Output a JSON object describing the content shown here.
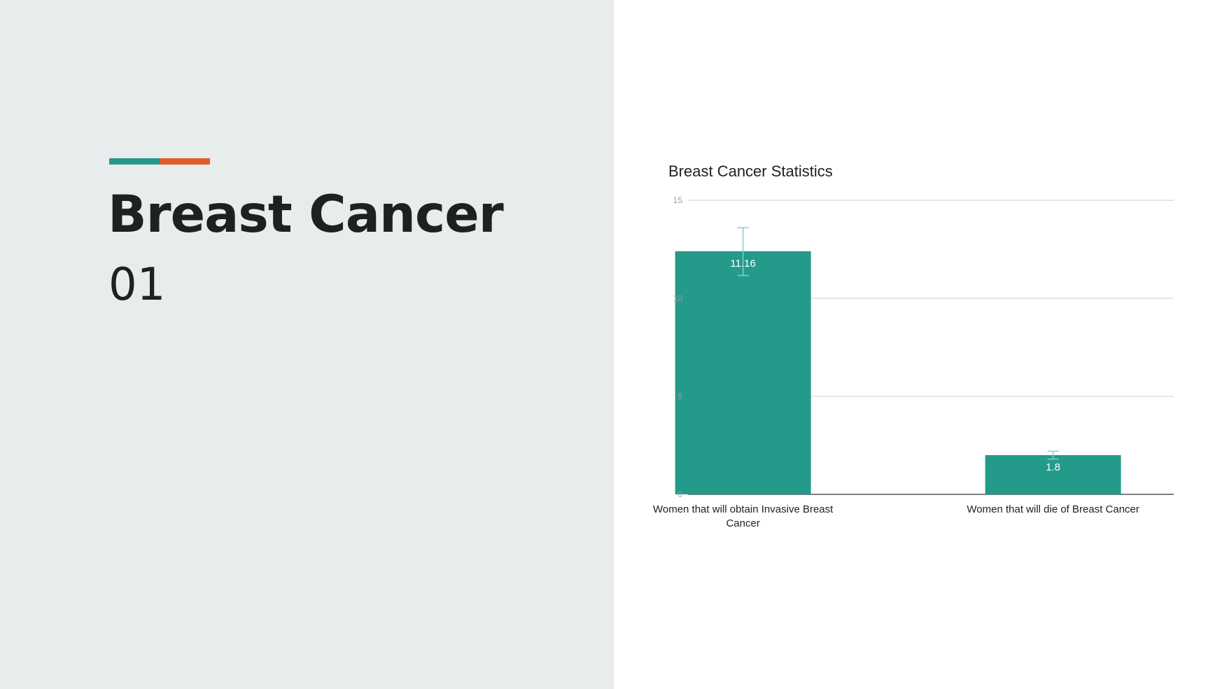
{
  "slide": {
    "title": "Breast Cancer",
    "number": "01",
    "accent_colors": [
      "#239a8a",
      "#e25b26"
    ],
    "panel_color": "#e8ecec"
  },
  "chart_data": {
    "type": "bar",
    "title": "Breast Cancer Statistics",
    "xlabel": "",
    "ylabel": "",
    "ylim": [
      0,
      15
    ],
    "yticks": [
      0,
      5,
      10,
      15
    ],
    "grid": true,
    "legend": "none",
    "bar_color": "#239a8a",
    "error_bar_color": "#7fcfcf",
    "categories": [
      "Women that will obtain Invasive Breast Cancer",
      "Women that will die of Breast Cancer"
    ],
    "values": [
      12.4,
      2.0
    ],
    "data_labels": [
      "11.16",
      "1.8"
    ],
    "error_bars": [
      [
        11.16,
        13.6
      ],
      [
        1.8,
        2.2
      ]
    ]
  }
}
